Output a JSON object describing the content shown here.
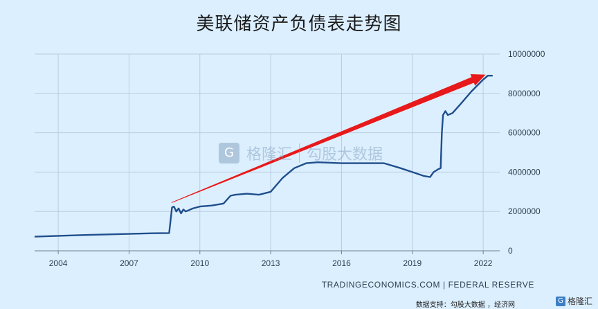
{
  "title": "美联储资产负债表走势图",
  "watermark": {
    "brand": "格隆汇",
    "text": "勾股大数据"
  },
  "source_text": "TRADINGECONOMICS.COM | FEDERAL RESERVE",
  "footer": {
    "note": "数据支持：勾股大数据 ，经济网",
    "logo_text": "格隆汇"
  },
  "colors": {
    "background": "#dcefff",
    "line": "#1f4e8c",
    "arrow": "#e8191a",
    "grid": "#b9cde0"
  },
  "chart_data": {
    "type": "line",
    "title": "美联储资产负债表走势图",
    "xlabel": "",
    "ylabel": "",
    "xlim": [
      2003.0,
      2022.7
    ],
    "ylim": [
      0,
      10000000
    ],
    "x_ticks": [
      2004,
      2007,
      2010,
      2013,
      2016,
      2019,
      2022
    ],
    "y_ticks": [
      0,
      2000000,
      4000000,
      6000000,
      8000000,
      10000000
    ],
    "y_axis_position": "right",
    "grid": true,
    "series": [
      {
        "x": [
          2003.0,
          2004.0,
          2005.0,
          2006.0,
          2007.0,
          2008.0,
          2008.7,
          2008.82,
          2008.9,
          2009.0,
          2009.1,
          2009.2,
          2009.3,
          2009.4,
          2009.5,
          2009.7,
          2010.0,
          2010.5,
          2011.0,
          2011.3,
          2011.5,
          2012.0,
          2012.5,
          2013.0,
          2013.5,
          2014.0,
          2014.5,
          2015.0,
          2016.0,
          2017.0,
          2017.8,
          2018.5,
          2019.0,
          2019.5,
          2019.75,
          2019.9,
          2020.1,
          2020.2,
          2020.25,
          2020.3,
          2020.4,
          2020.5,
          2020.7,
          2021.0,
          2021.5,
          2022.0,
          2022.2,
          2022.4
        ],
        "values": [
          720000,
          760000,
          800000,
          830000,
          860000,
          890000,
          900000,
          2200000,
          2250000,
          2000000,
          2150000,
          1900000,
          2100000,
          2000000,
          2050000,
          2150000,
          2250000,
          2300000,
          2400000,
          2800000,
          2850000,
          2900000,
          2850000,
          3000000,
          3700000,
          4200000,
          4450000,
          4500000,
          4450000,
          4450000,
          4450000,
          4200000,
          4000000,
          3800000,
          3750000,
          4000000,
          4150000,
          4200000,
          6000000,
          6900000,
          7100000,
          6900000,
          7000000,
          7400000,
          8100000,
          8700000,
          8900000,
          8900000
        ]
      }
    ],
    "annotations": [
      {
        "type": "arrow",
        "from": [
          2008.8,
          2450000
        ],
        "to": [
          2022.1,
          8950000
        ],
        "color": "#e8191a"
      }
    ]
  }
}
